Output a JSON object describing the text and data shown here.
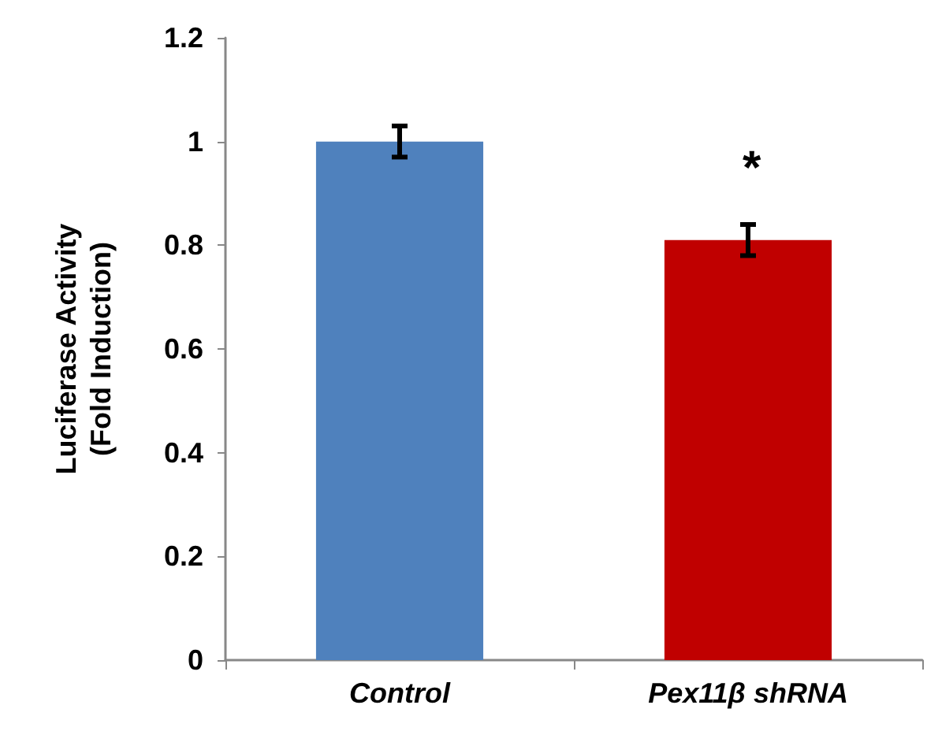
{
  "chart_data": {
    "type": "bar",
    "ylabel": "Luciferase Activity\n(Fold Induction)",
    "categories": [
      "Control",
      "Pex11β shRNA"
    ],
    "values": [
      1.0,
      0.81
    ],
    "colors": [
      "#4f81bd",
      "#c00000"
    ],
    "errors": [
      0.03,
      0.03
    ],
    "ylim": [
      0,
      1.2
    ],
    "yticks": [
      0,
      0.2,
      0.4,
      0.6,
      0.8,
      1,
      1.2
    ],
    "grid": false,
    "annotations": [
      "*"
    ]
  }
}
